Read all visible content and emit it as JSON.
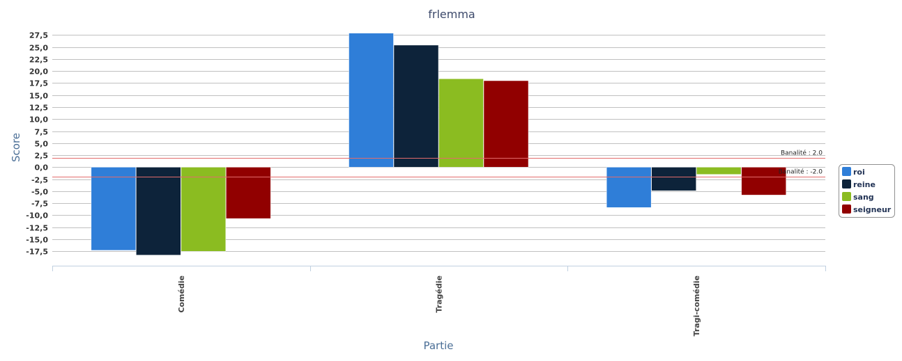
{
  "chart_data": {
    "type": "bar",
    "title": "frlemma",
    "xlabel": "Partie",
    "ylabel": "Score",
    "categories": [
      "Comédie",
      "Tragédie",
      "Tragi-comédie"
    ],
    "series": [
      {
        "name": "roi",
        "color": "#2f7ed8",
        "values": [
          -17.3,
          27.9,
          -8.4
        ]
      },
      {
        "name": "reine",
        "color": "#0d233a",
        "values": [
          -18.3,
          25.4,
          -4.9
        ]
      },
      {
        "name": "sang",
        "color": "#8bbc21",
        "values": [
          -17.5,
          18.4,
          -1.5
        ]
      },
      {
        "name": "seigneur",
        "color": "#910000",
        "values": [
          -10.7,
          18.0,
          -5.8
        ]
      }
    ],
    "ylim": [
      -20.5,
      29
    ],
    "yticks": [
      "27,5",
      "25,0",
      "22,5",
      "20,0",
      "17,5",
      "15,0",
      "12,5",
      "10,0",
      "7,5",
      "5,0",
      "2,5",
      "0,0",
      "-2,5",
      "-5,0",
      "-7,5",
      "-10,0",
      "-12,5",
      "-15,0",
      "-17,5"
    ],
    "ytick_values": [
      27.5,
      25,
      22.5,
      20,
      17.5,
      15,
      12.5,
      10,
      7.5,
      5,
      2.5,
      0,
      -2.5,
      -5,
      -7.5,
      -10,
      -12.5,
      -15,
      -17.5
    ],
    "reference_lines": [
      {
        "value": 2.0,
        "label": "Banalité : 2.0",
        "color": "#e36b6b"
      },
      {
        "value": -2.0,
        "label": "Banalité : -2.0",
        "color": "#e36b6b"
      }
    ],
    "grid": true,
    "legend_position": "right"
  }
}
